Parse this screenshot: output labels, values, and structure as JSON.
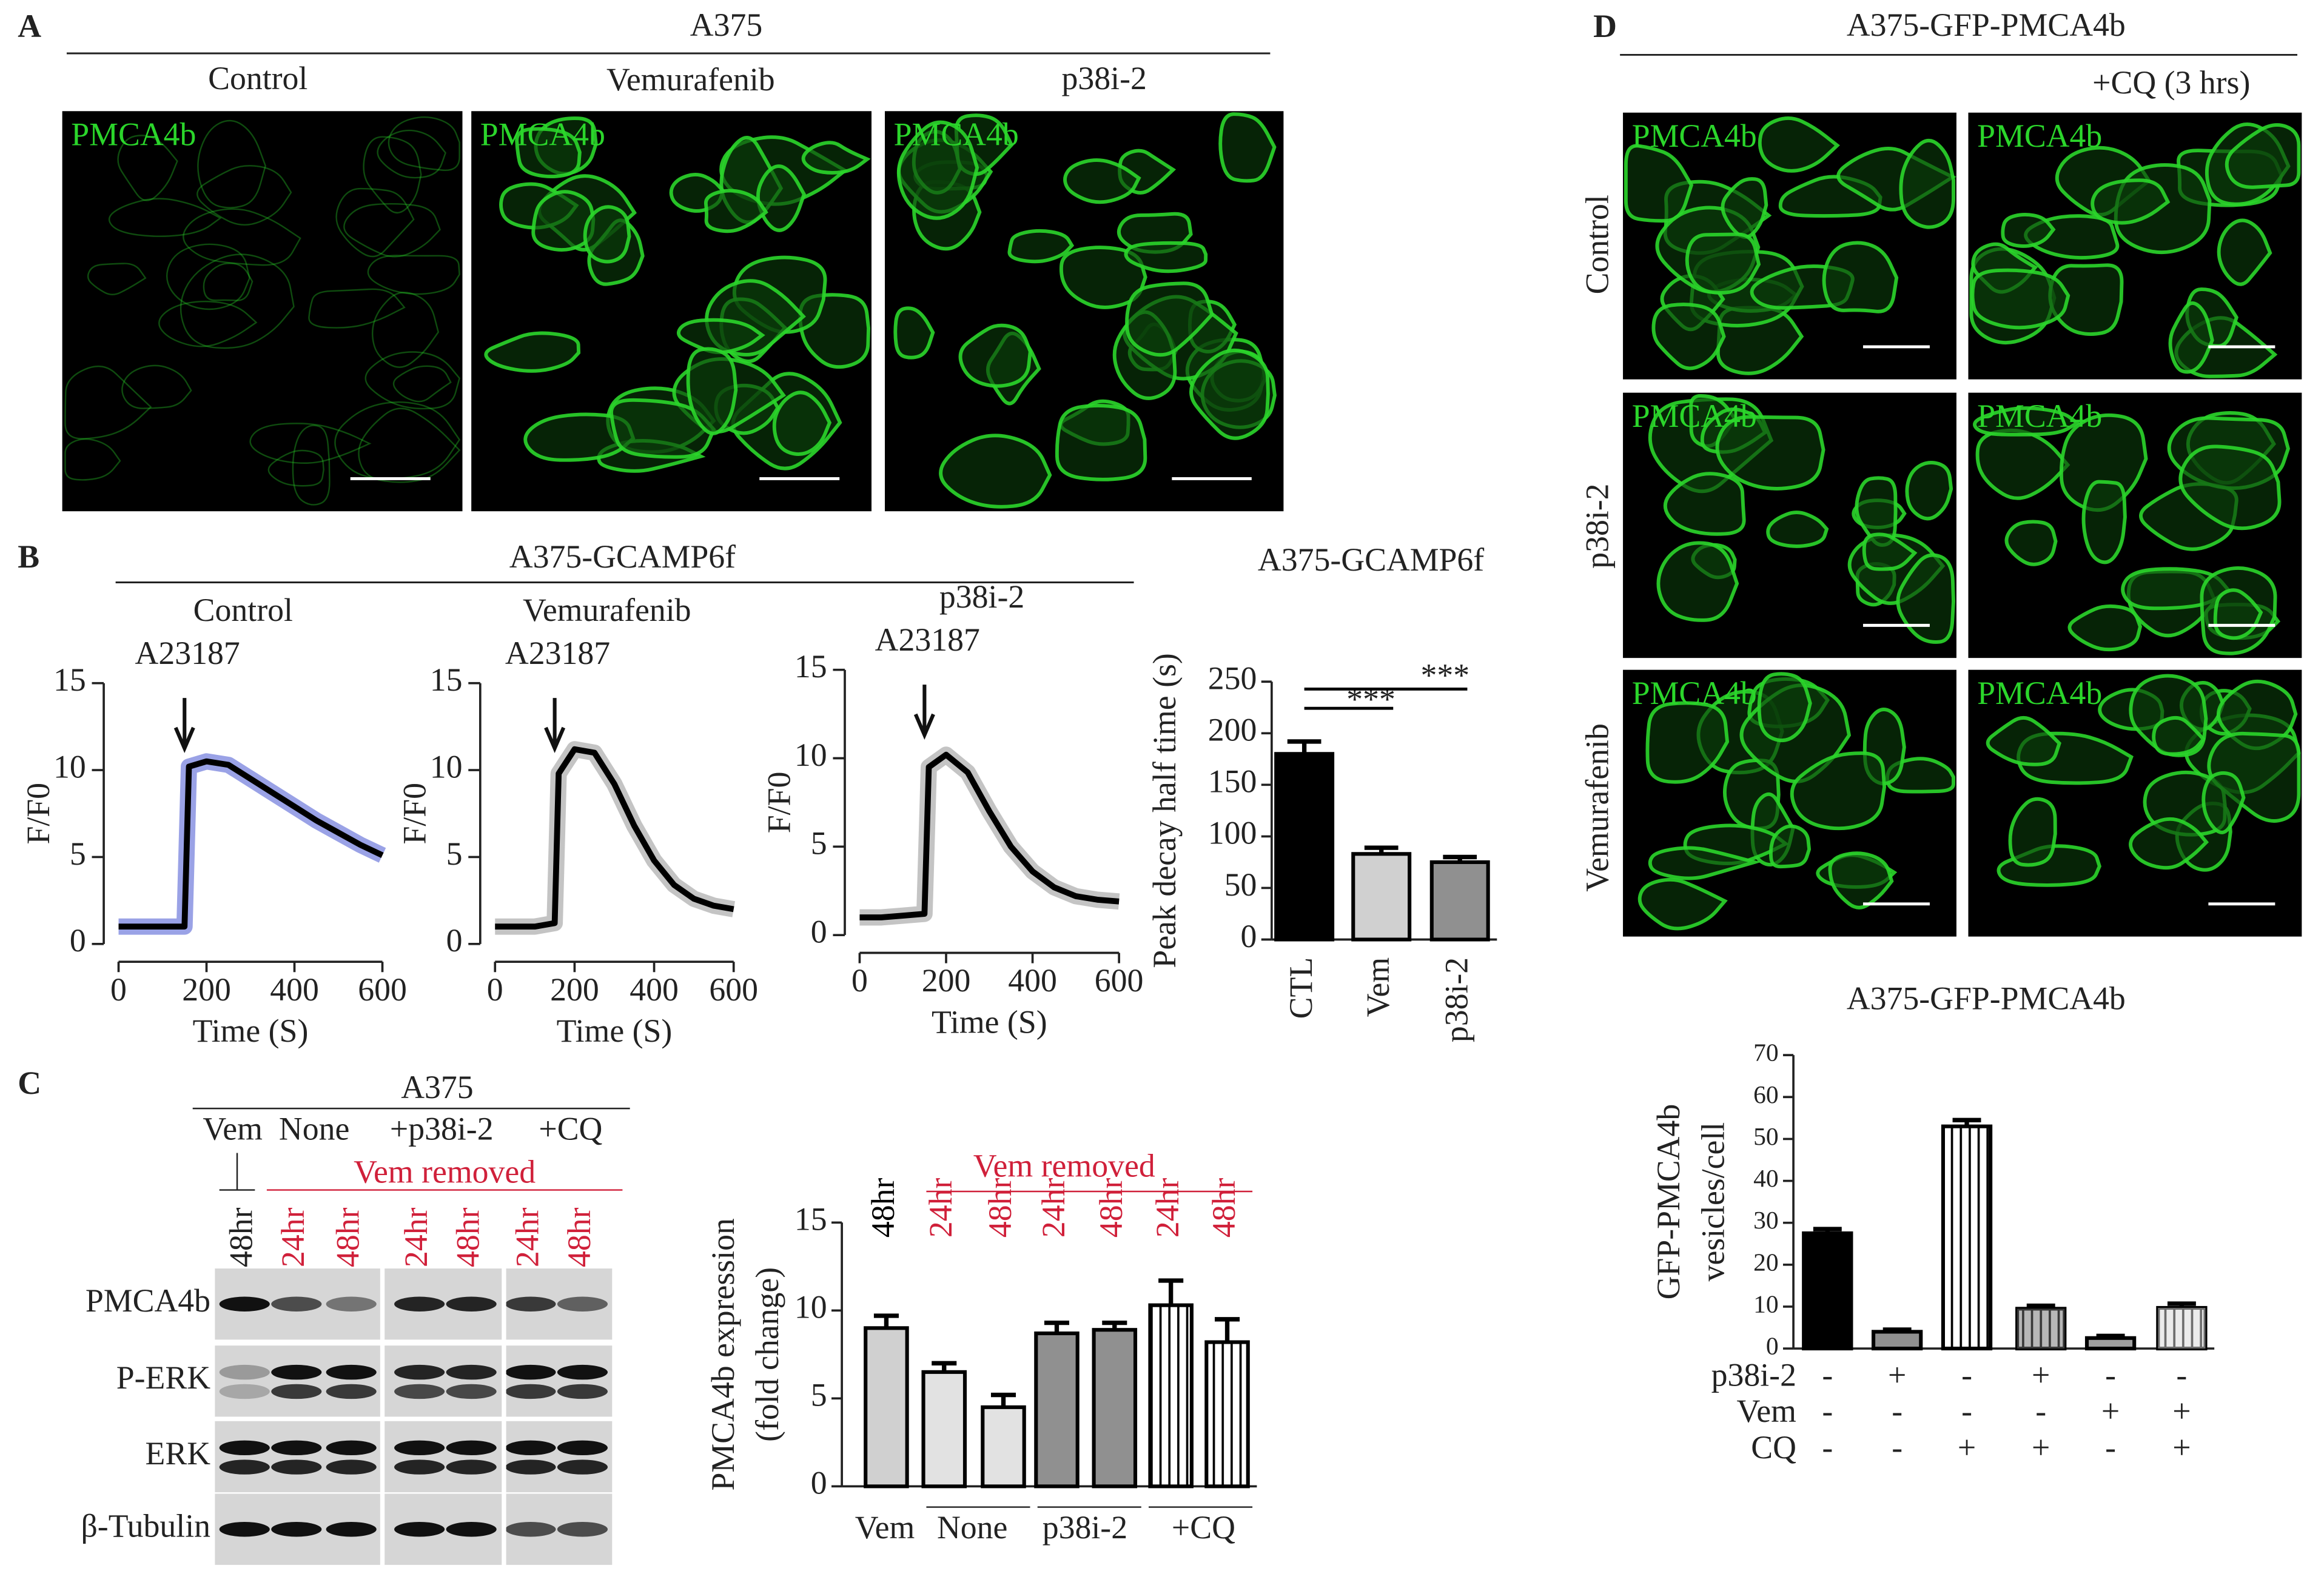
{
  "panel_a": {
    "letter": "A",
    "title": "A375",
    "columns": [
      "Control",
      "Vemurafenib",
      "p38i-2"
    ],
    "stain": "PMCA4b"
  },
  "panel_b": {
    "letter": "B",
    "title": "A375-GCAMP6f"
  },
  "panel_c": {
    "letter": "C",
    "title": "A375",
    "groups": [
      "Vem",
      "None",
      "+p38i-2",
      "+CQ"
    ],
    "removed": "Vem removed",
    "lanes": [
      "48hr",
      "24hr",
      "48hr",
      "24hr",
      "48hr",
      "24hr",
      "48hr"
    ],
    "rows": [
      "PMCA4b",
      "P-ERK",
      "ERK",
      "β-Tubulin"
    ]
  },
  "panel_d": {
    "letter": "D",
    "title": "A375-GFP-PMCA4b",
    "treatment": "+CQ (3 hrs)",
    "rows": [
      "Control",
      "p38i-2",
      "Vemurafenib"
    ],
    "stain": "PMCA4b"
  },
  "chart_data": [
    {
      "type": "line",
      "title": "Control",
      "annotation": "A23187",
      "x_label": "Time (S)",
      "y_label": "F/F0",
      "x": [
        0,
        50,
        100,
        150,
        160,
        200,
        250,
        300,
        350,
        400,
        450,
        500,
        550,
        600
      ],
      "values": [
        1,
        1,
        1,
        1,
        10.2,
        10.5,
        10.3,
        9.5,
        8.7,
        7.9,
        7.1,
        6.4,
        5.7,
        5.1
      ],
      "color": "#000000",
      "band_color": "#9aa2e6",
      "xlim": [
        0,
        600
      ],
      "ylim": [
        0,
        15
      ],
      "xticks": [
        0,
        200,
        400,
        600
      ],
      "yticks": [
        0,
        5,
        10,
        15
      ]
    },
    {
      "type": "line",
      "title": "Vemurafenib",
      "annotation": "A23187",
      "x_label": "Time (S)",
      "y_label": "F/F0",
      "x": [
        0,
        50,
        100,
        150,
        160,
        200,
        250,
        300,
        350,
        400,
        450,
        500,
        550,
        600
      ],
      "values": [
        1,
        1,
        1,
        1.2,
        9.8,
        11.2,
        11,
        9.2,
        6.8,
        4.8,
        3.4,
        2.6,
        2.2,
        2.0
      ],
      "color": "#000000",
      "band_color": "#c4c4c4",
      "xlim": [
        0,
        600
      ],
      "ylim": [
        0,
        15
      ],
      "xticks": [
        0,
        200,
        400,
        600
      ],
      "yticks": [
        0,
        5,
        10,
        15
      ]
    },
    {
      "type": "line",
      "title": "p38i-2",
      "annotation": "A23187",
      "x_label": "Time (S)",
      "y_label": "F/F0",
      "x": [
        0,
        50,
        100,
        150,
        160,
        200,
        250,
        300,
        350,
        400,
        450,
        500,
        550,
        600
      ],
      "values": [
        1,
        1,
        1.1,
        1.2,
        9.5,
        10.2,
        9.2,
        7,
        5,
        3.6,
        2.7,
        2.2,
        2,
        1.9
      ],
      "color": "#000000",
      "band_color": "#c4c4c4",
      "xlim": [
        0,
        600
      ],
      "ylim": [
        0,
        15
      ],
      "xticks": [
        0,
        200,
        400,
        600
      ],
      "yticks": [
        0,
        5,
        10,
        15
      ]
    },
    {
      "type": "bar",
      "title": "A375-GCAMP6f",
      "y_label": [
        "Peak decay half time (s)"
      ],
      "categories": [
        "CTL",
        "Vem",
        "p38i-2"
      ],
      "values": [
        180,
        83,
        75
      ],
      "errors": [
        12,
        6,
        5
      ],
      "colors": [
        "#000000",
        "#d0d0d0",
        "#909090"
      ],
      "hatch": [
        false,
        false,
        false
      ],
      "ylim": [
        0,
        250
      ],
      "yticks": [
        0,
        50,
        100,
        150,
        200,
        250
      ],
      "annotations": [
        "***",
        "***"
      ]
    },
    {
      "type": "bar",
      "y_label": [
        "PMCA4b expression",
        "(fold change)"
      ],
      "categories": [
        "48hr",
        "24hr",
        "48hr",
        "24hr",
        "48hr",
        "24hr",
        "48hr"
      ],
      "category_colors": [
        "#000000",
        "#d0203a",
        "#d0203a",
        "#d0203a",
        "#d0203a",
        "#d0203a",
        "#d0203a"
      ],
      "group_title": "Vem removed",
      "groups": [
        "Vem",
        "None",
        "p38i-2",
        "+CQ"
      ],
      "values": [
        9,
        6.5,
        4.5,
        8.7,
        8.9,
        10.3,
        8.2
      ],
      "errors": [
        0.7,
        0.5,
        0.7,
        0.6,
        0.4,
        1.4,
        1.3
      ],
      "colors": [
        "#d0d0d0",
        "#e2e2e2",
        "#e2e2e2",
        "#909090",
        "#909090",
        "#ffffff",
        "#ffffff"
      ],
      "hatch": [
        false,
        false,
        false,
        false,
        false,
        true,
        true
      ],
      "ylim": [
        0,
        15
      ],
      "yticks": [
        0,
        5,
        10,
        15
      ]
    },
    {
      "type": "bar",
      "title": "A375-GFP-PMCA4b",
      "y_label": [
        "GFP-PMCA4b",
        "vesicles/cell"
      ],
      "values": [
        27.5,
        4,
        53,
        9.5,
        2.5,
        9.7
      ],
      "errors": [
        1,
        0.5,
        1.5,
        0.7,
        0.5,
        1
      ],
      "colors": [
        "#000000",
        "#909090",
        "#ffffff",
        "#707070",
        "#a0a0a0",
        "#d8d8d8"
      ],
      "hatch": [
        false,
        false,
        true,
        true,
        false,
        true
      ],
      "ylim": [
        0,
        70
      ],
      "yticks": [
        0,
        10,
        20,
        30,
        40,
        50,
        60,
        70
      ],
      "table": {
        "rows": [
          "p38i-2",
          "Vem",
          "CQ"
        ],
        "cells": [
          [
            "-",
            "+",
            "-",
            "+",
            "-",
            "-"
          ],
          [
            "-",
            "-",
            "-",
            "-",
            "+",
            "+"
          ],
          [
            "-",
            "-",
            "+",
            "+",
            "-",
            "+"
          ]
        ]
      }
    }
  ]
}
